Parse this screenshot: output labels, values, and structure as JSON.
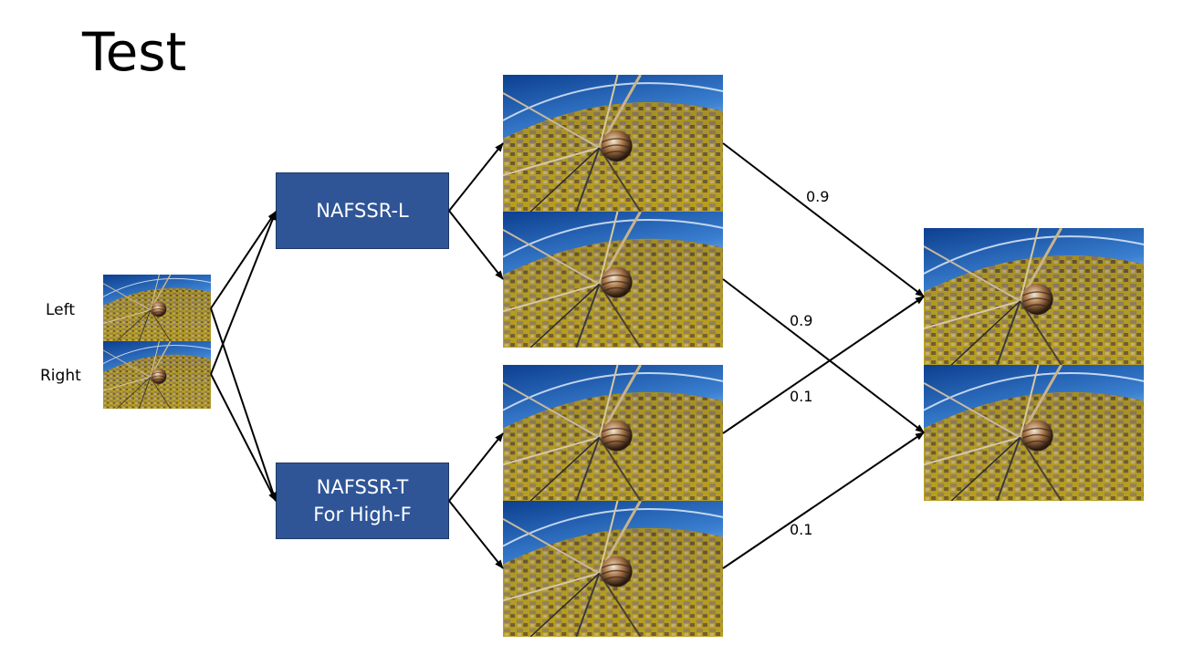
{
  "title": "Test",
  "inputs": {
    "left_label": "Left",
    "right_label": "Right"
  },
  "models": {
    "l": {
      "name": "NAFSSR-L"
    },
    "t": {
      "line1": "NAFSSR-T",
      "line2": "For High-F"
    }
  },
  "weights": {
    "l_left": "0.9",
    "l_right": "0.9",
    "t_left": "0.1",
    "t_right": "0.1"
  }
}
